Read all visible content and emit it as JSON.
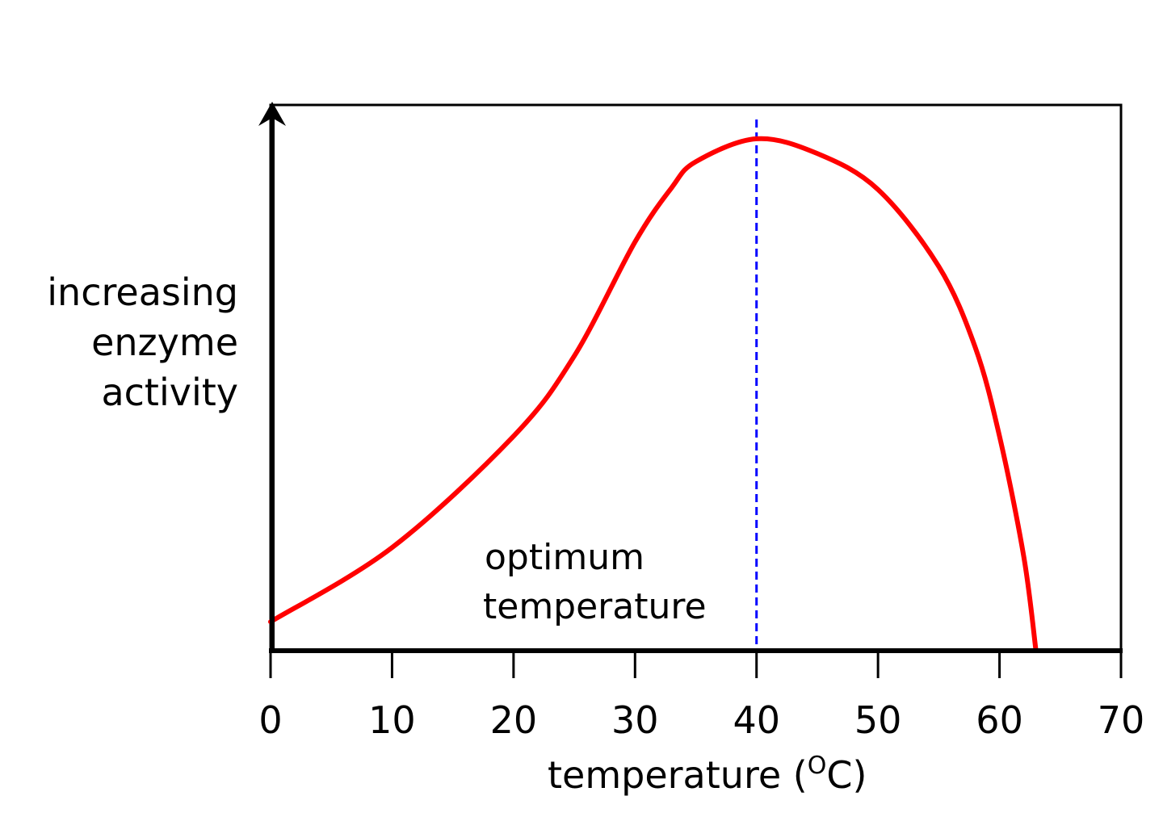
{
  "chart_data": {
    "type": "line",
    "title": "",
    "ylabel_lines": [
      "increasing",
      "enzyme",
      "activity"
    ],
    "xlabel_parts": {
      "prefix": "temperature (",
      "superscript": "O",
      "suffix": "C)"
    },
    "xlim": [
      0,
      70
    ],
    "ylim": [
      0,
      100
    ],
    "x_ticks": [
      0,
      10,
      20,
      30,
      40,
      50,
      60,
      70
    ],
    "x_tick_labels": [
      "0",
      "10",
      "20",
      "30",
      "40",
      "50",
      "60",
      "70"
    ],
    "y_ticks_shown": false,
    "grid": false,
    "series": [
      {
        "color": "#ff0000",
        "x": [
          0,
          10,
          20,
          25,
          30,
          33,
          35,
          40,
          45,
          50,
          55,
          58,
          60,
          62,
          63
        ],
        "y": [
          5.3,
          18.9,
          39.3,
          54,
          74.9,
          84.8,
          89.6,
          93.8,
          91.1,
          84.5,
          70.4,
          55.6,
          39.3,
          17.2,
          0
        ]
      }
    ],
    "annotations": [
      {
        "type": "vertical-dashed-line",
        "x": 40,
        "color": "#0000ff"
      },
      {
        "type": "text",
        "lines": [
          "optimum",
          "temperature"
        ]
      }
    ]
  }
}
